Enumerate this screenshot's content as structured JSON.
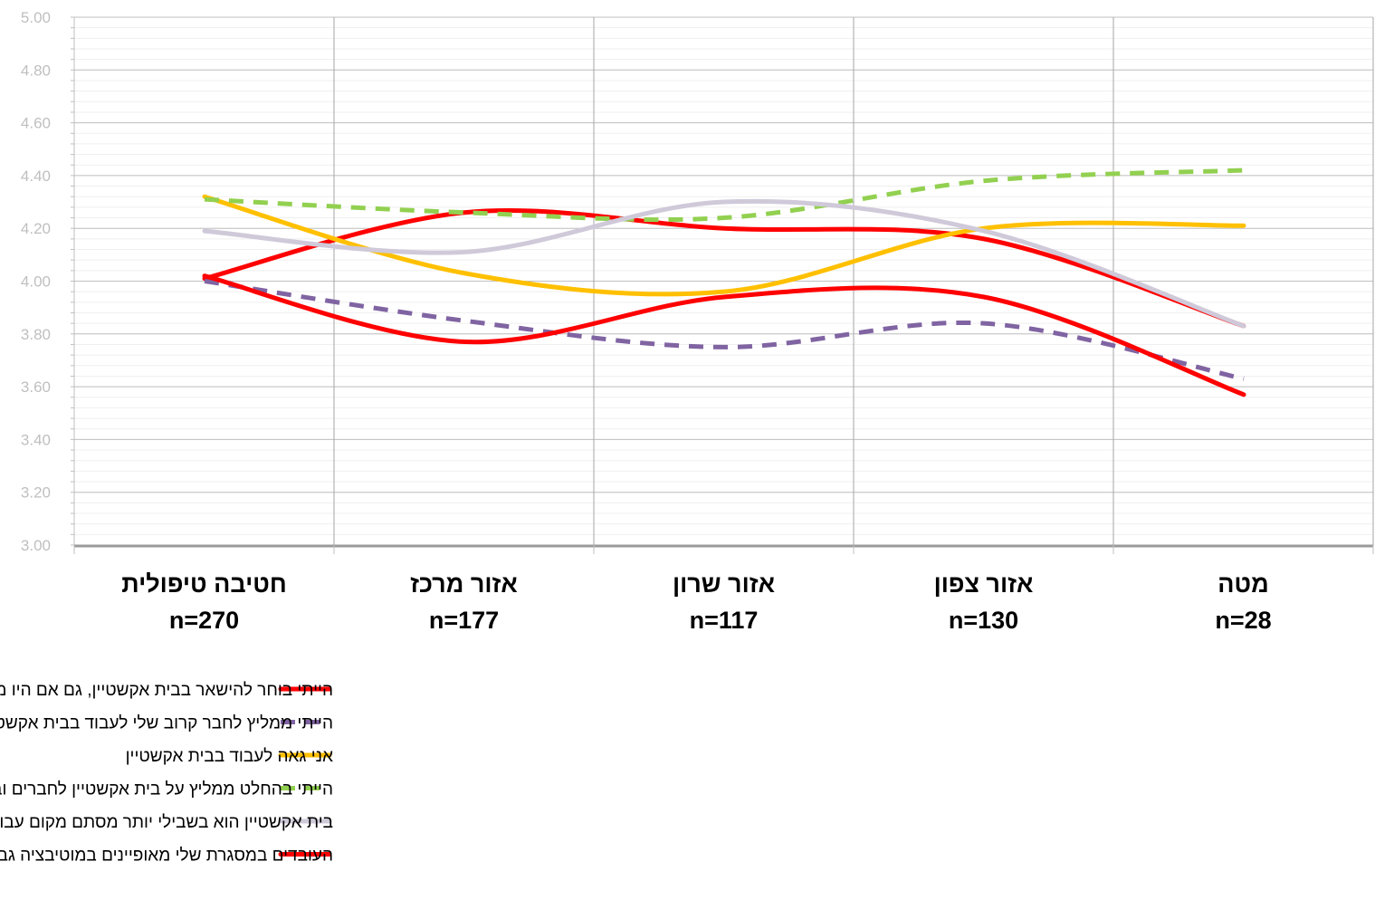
{
  "chart_data": {
    "type": "line",
    "title": "",
    "xlabel": "",
    "ylabel": "",
    "ylim": [
      3.0,
      5.0
    ],
    "yticks": [
      "3.00",
      "3.20",
      "3.40",
      "3.60",
      "3.80",
      "4.00",
      "4.20",
      "4.40",
      "4.60",
      "4.80",
      "5.00"
    ],
    "grid": true,
    "smooth": true,
    "legend_position": "bottom",
    "categories": [
      {
        "name": "חטיבה טיפולית",
        "n": "n=270"
      },
      {
        "name": "אזור מרכז",
        "n": "n=177"
      },
      {
        "name": "אזור שרון",
        "n": "n=117"
      },
      {
        "name": "אזור צפון",
        "n": "n=130"
      },
      {
        "name": "מטה",
        "n": "n=28"
      }
    ],
    "series": [
      {
        "name": "הייתי בוחר להישאר בבית אקשטיין, גם אם היו מציעים לי תפקיד דומה ותנאים דומים במקום אחר",
        "values": [
          4.01,
          4.26,
          4.2,
          4.16,
          3.83
        ],
        "color": "#ff0000",
        "dash": "solid"
      },
      {
        "name": "הייתי ממליץ לחבר קרוב שלי לעבוד בבית אקשטיין",
        "values": [
          4.0,
          3.85,
          3.75,
          3.84,
          3.63
        ],
        "color": "#8064a2",
        "dash": "dashed"
      },
      {
        "name": "אני גאה לעבוד בבית אקשטיין",
        "values": [
          4.32,
          4.03,
          3.96,
          4.2,
          4.21
        ],
        "color": "#ffc000",
        "dash": "solid"
      },
      {
        "name": "הייתי בהחלט ממליץ על בית אקשטיין לחברים ובני משפחה שיש להם קרובים בעלי צרכים מיוחדים רלוונטיים",
        "values": [
          4.31,
          4.26,
          4.24,
          4.38,
          4.42
        ],
        "color": "#92d050",
        "dash": "dashed"
      },
      {
        "name": "בית אקשטיין הוא בשבילי יותר מסתם מקום עבודה",
        "values": [
          4.19,
          4.11,
          4.3,
          4.19,
          3.83
        ],
        "color": "#cfc9d9",
        "dash": "solid"
      },
      {
        "name": "העובדים במסגרת שלי מאופיינים במוטיבציה גבוהה לעבוד ולתרום",
        "values": [
          4.02,
          3.77,
          3.94,
          3.94,
          3.57
        ],
        "color": "#ff0000",
        "dash": "solid"
      }
    ]
  }
}
